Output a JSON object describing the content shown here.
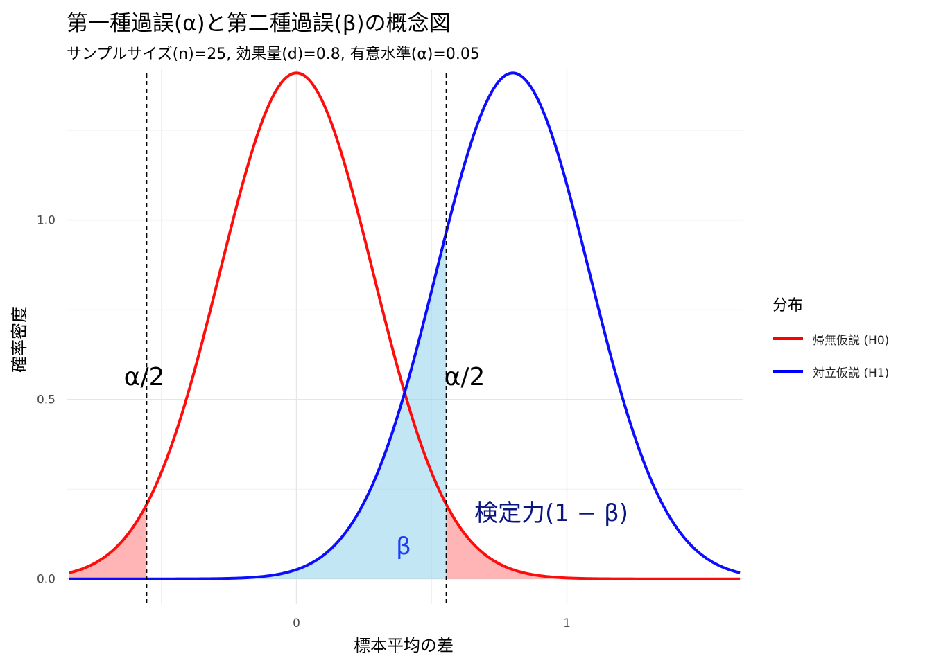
{
  "title": "第一種過誤(α)と第二種過誤(β)の概念図",
  "subtitle": "サンプルサイズ(n)=25, 効果量(d)=0.8, 有意水準(α)=0.05",
  "legend": {
    "title": "分布",
    "items": [
      {
        "label": "帰無仮説 (H0)",
        "color": "#ff0000"
      },
      {
        "label": "対立仮説 (H1)",
        "color": "#0000ff"
      }
    ]
  },
  "annotations": {
    "alpha_left": "α/2",
    "alpha_right": "α/2",
    "beta": "β",
    "power": "検定力(1 − β)"
  },
  "chart_data": {
    "type": "line",
    "xlabel": "標本平均の差",
    "ylabel": "確率密度",
    "xlim": [
      -0.85,
      1.65
    ],
    "ylim": [
      -0.07,
      1.42
    ],
    "x_ticks": [
      0,
      1
    ],
    "y_ticks": [
      0.0,
      0.5,
      1.0
    ],
    "y_tick_labels": [
      "0.0",
      "0.5",
      "1.0"
    ],
    "grid": true,
    "legend_position": "right",
    "series": [
      {
        "name": "帰無仮説 (H0)",
        "distribution": "normal",
        "mean": 0.0,
        "sd": 0.283,
        "x_range": [
          -0.84,
          1.64
        ],
        "color": "#ff0000"
      },
      {
        "name": "対立仮説 (H1)",
        "distribution": "normal",
        "mean": 0.8,
        "sd": 0.283,
        "x_range": [
          -0.84,
          1.64
        ],
        "color": "#0000ff"
      }
    ],
    "critical_values": [
      -0.554,
      0.554
    ],
    "shaded_regions": [
      {
        "name": "α/2",
        "under": "帰無仮説 (H0)",
        "from": -0.84,
        "to": -0.554,
        "color": "#ff6b6b"
      },
      {
        "name": "α/2",
        "under": "帰無仮説 (H0)",
        "from": 0.554,
        "to": 1.64,
        "color": "#ff6b6b"
      },
      {
        "name": "β",
        "under": "対立仮説 (H1)",
        "from": -0.84,
        "to": 0.554,
        "color": "#87ceeb"
      }
    ]
  }
}
